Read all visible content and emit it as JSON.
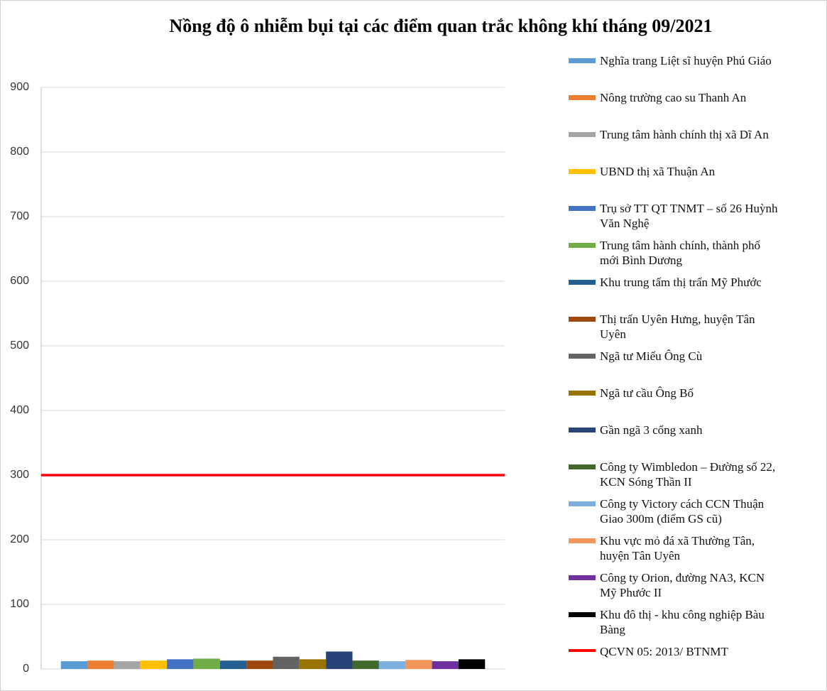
{
  "chart_data": {
    "type": "bar",
    "title": "Nồng độ ô nhiễm bụi tại các điểm quan trắc không khí tháng 09/2021",
    "categories": [
      null
    ],
    "series": [
      {
        "name": "Nghĩa trang Liệt sĩ huyện Phú Giáo",
        "color": "#5b9bd5",
        "values": [
          12
        ]
      },
      {
        "name": "Nông trường cao su Thanh An",
        "color": "#ed7d31",
        "values": [
          13
        ]
      },
      {
        "name": "Trung tâm hành chính thị xã Dĩ An",
        "color": "#a5a5a5",
        "values": [
          12
        ]
      },
      {
        "name": "UBND thị xã Thuận An",
        "color": "#ffc000",
        "values": [
          13
        ]
      },
      {
        "name": "Trụ sở TT QT TNMT – số 26 Huỳnh Văn Nghệ",
        "color": "#4472c4",
        "values": [
          15
        ]
      },
      {
        "name": "Trung tâm hành chính, thành phố mới Bình Dương",
        "color": "#70ad47",
        "values": [
          16
        ]
      },
      {
        "name": "Khu trung tấm thị trấn Mỹ Phước",
        "color": "#255e91",
        "values": [
          13
        ]
      },
      {
        "name": "Thị trấn Uyên Hưng, huyện Tân Uyên",
        "color": "#9e480e",
        "values": [
          13
        ]
      },
      {
        "name": "Ngã tư Miếu Ông Cù",
        "color": "#636363",
        "values": [
          19
        ]
      },
      {
        "name": "Ngã tư cầu Ông Bố",
        "color": "#997300",
        "values": [
          15
        ]
      },
      {
        "name": "Gần ngã 3 cổng xanh",
        "color": "#264478",
        "values": [
          27
        ]
      },
      {
        "name": "Công ty Wimbledon – Đường số 22, KCN Sóng Thần II",
        "color": "#43682b",
        "values": [
          13
        ]
      },
      {
        "name": "Công ty Victory cách CCN Thuận Giao 300m (điểm GS cũ)",
        "color": "#7cafdd",
        "values": [
          12
        ]
      },
      {
        "name": "Khu vực mỏ đá xã Thường Tân, huyện Tân Uyên",
        "color": "#f1975a",
        "values": [
          14
        ]
      },
      {
        "name": "Công ty Orion, đường NA3, KCN Mỹ Phước II",
        "color": "#7030a0",
        "values": [
          12
        ]
      },
      {
        "name": "Khu đô thị - khu công nghiệp Bàu Bàng",
        "color": "#000000",
        "values": [
          15
        ]
      }
    ],
    "reference_lines": [
      {
        "name": "QCVN 05: 2013/ BTNMT",
        "value": 300,
        "color": "#ff0000"
      }
    ],
    "ylim": [
      0,
      900
    ],
    "yticks": [
      0,
      100,
      200,
      300,
      400,
      500,
      600,
      700,
      800,
      900
    ],
    "grid": true,
    "legend": "right"
  }
}
